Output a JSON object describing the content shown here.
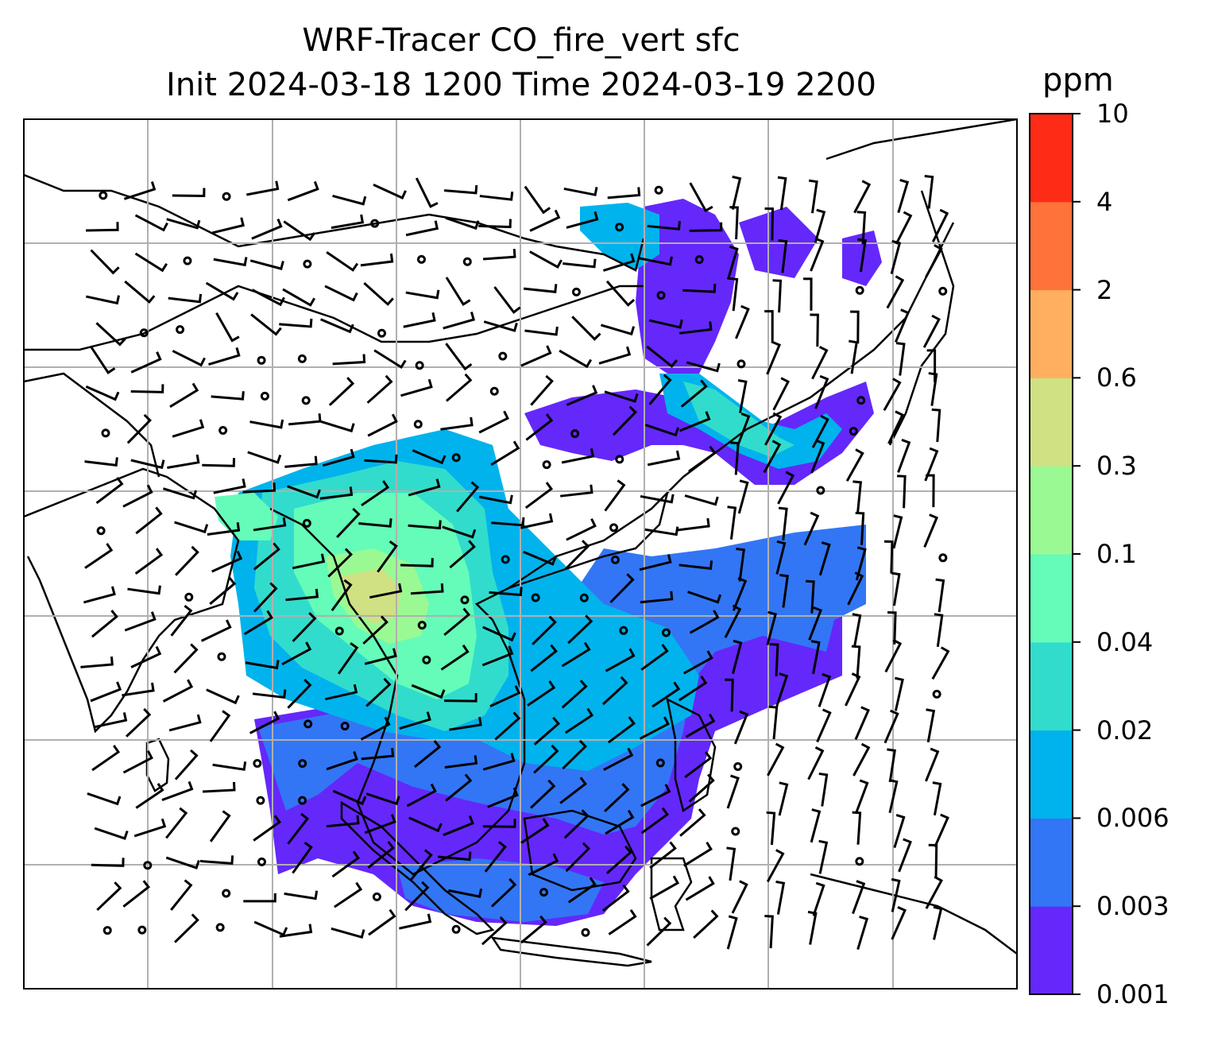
{
  "title": {
    "line1": "WRF-Tracer CO_fire_vert sfc",
    "line2": "Init 2024-03-18 1200 Time 2024-03-19 2200"
  },
  "colorbar": {
    "unit": "ppm",
    "levels": [
      "0.001",
      "0.003",
      "0.006",
      "0.02",
      "0.04",
      "0.1",
      "0.3",
      "0.6",
      "2",
      "4",
      "10"
    ],
    "colors": [
      "#6428fa",
      "#3276f5",
      "#00b3ec",
      "#32dccc",
      "#64fcb8",
      "#9bf993",
      "#cfe183",
      "#ffaf5f",
      "#ff7239",
      "#fe2b17"
    ]
  },
  "map": {
    "background": "#ffffff",
    "coastline_color": "#000000",
    "gridline_color": "#b0b0b0",
    "wind_barb_color": "#000000"
  }
}
